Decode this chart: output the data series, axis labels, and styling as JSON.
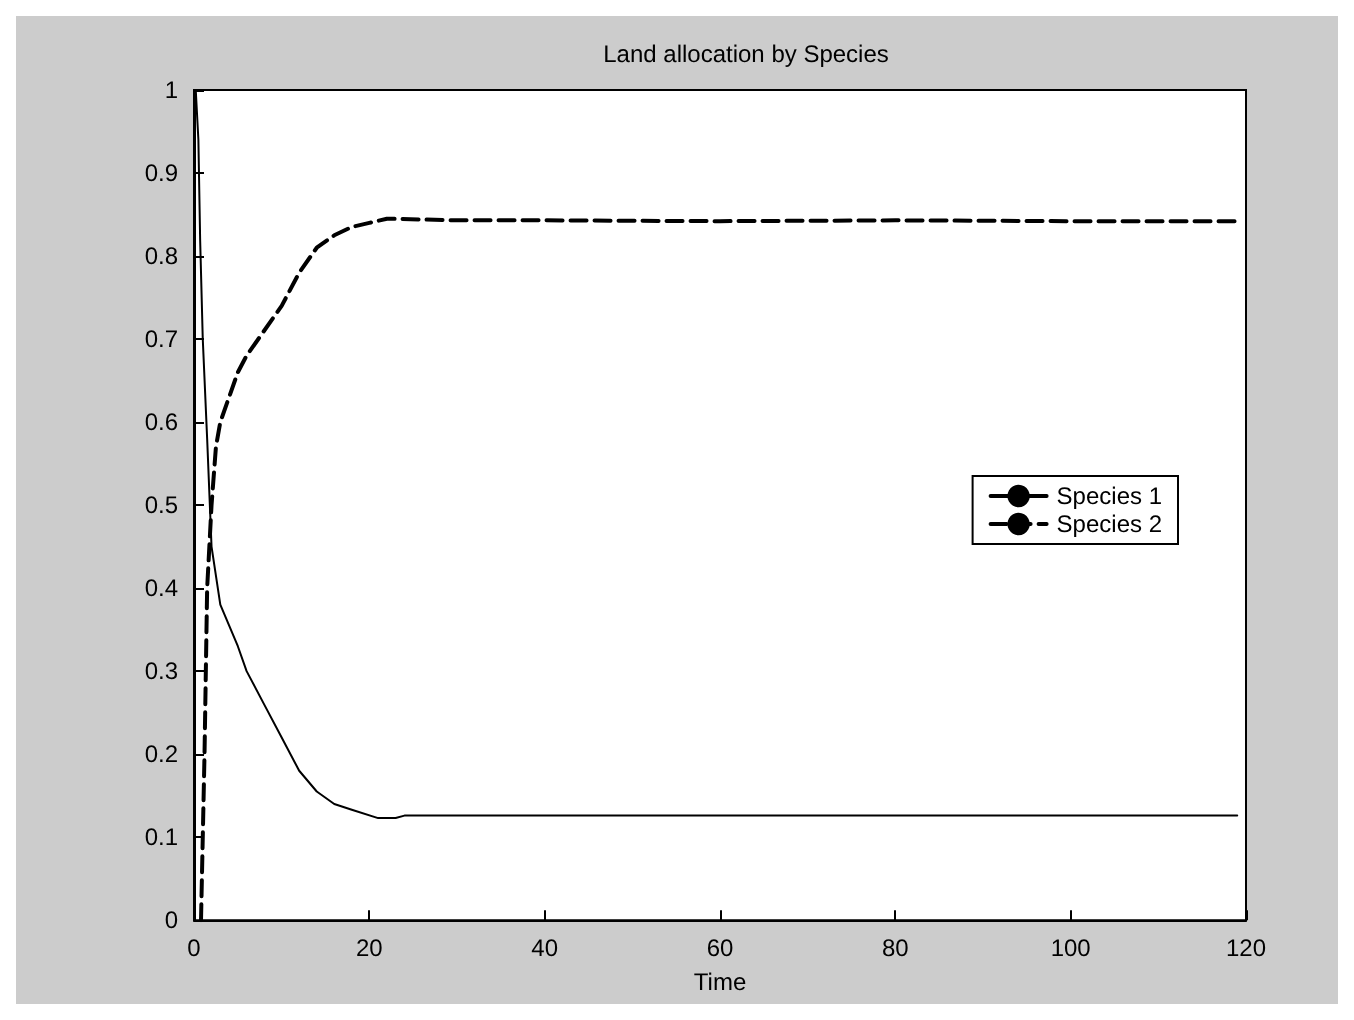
{
  "chart_data": {
    "type": "line",
    "title": "Land allocation by Species",
    "xlabel": "Time",
    "xlim": [
      0,
      120
    ],
    "xticks": [
      0,
      20,
      40,
      60,
      80,
      100,
      120
    ],
    "ylim": [
      0,
      1
    ],
    "yticks": [
      0,
      0.1,
      0.2,
      0.3,
      0.4,
      0.5,
      0.6,
      0.7,
      0.8,
      0.9,
      1
    ],
    "grid": false,
    "legend": "right",
    "marker": "none",
    "series": [
      {
        "name": "Species 1",
        "color": "#000000",
        "line_style": "solid",
        "x": [
          0.2,
          0.5,
          0.7,
          1,
          1.5,
          2,
          3,
          5,
          6,
          8,
          10,
          12,
          14,
          16,
          18,
          21,
          23,
          24,
          119
        ],
        "values": [
          1,
          0.94,
          0.82,
          0.7,
          0.58,
          0.45,
          0.38,
          0.33,
          0.3,
          0.26,
          0.22,
          0.18,
          0.155,
          0.14,
          0.133,
          0.123,
          0.123,
          0.126,
          0.126
        ]
      },
      {
        "name": "Species 2",
        "color": "#000000",
        "line_style": "dashed",
        "x": [
          0.8,
          1.2,
          1.5,
          2,
          2.5,
          3,
          4,
          5,
          6,
          8,
          10,
          12,
          14,
          16,
          18,
          20,
          22,
          30,
          40,
          60,
          80,
          100,
          119
        ],
        "values": [
          0,
          0.2,
          0.4,
          0.5,
          0.57,
          0.6,
          0.63,
          0.66,
          0.68,
          0.71,
          0.74,
          0.78,
          0.81,
          0.825,
          0.835,
          0.84,
          0.845,
          0.843,
          0.843,
          0.842,
          0.843,
          0.842,
          0.842
        ]
      }
    ]
  }
}
